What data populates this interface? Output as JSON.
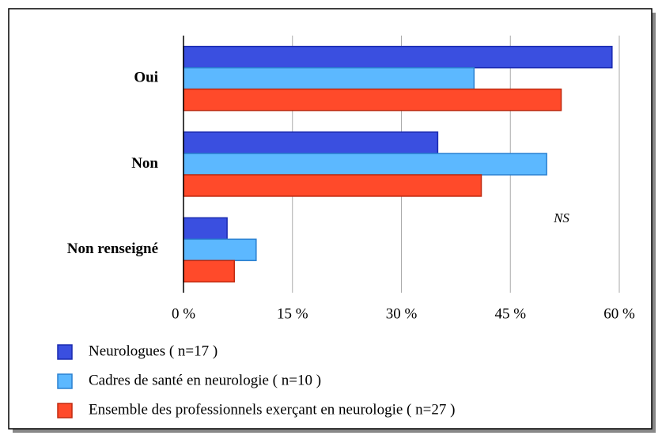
{
  "chart_data": {
    "type": "barh",
    "categories": [
      "Oui",
      "Non",
      "Non renseigné"
    ],
    "series": [
      {
        "name": "Neurologues ( n=17 )",
        "color": "#3a4fe0",
        "values": [
          59,
          35,
          6
        ]
      },
      {
        "name": "Cadres de santé en neurologie ( n=10 )",
        "color": "#5cb8ff",
        "values": [
          40,
          50,
          10
        ]
      },
      {
        "name": "Ensemble des professionnels exerçant en neurologie ( n=27 )",
        "color": "#ff4a2a",
        "values": [
          52,
          41,
          7
        ]
      }
    ],
    "xlim": [
      0,
      60
    ],
    "xticks": [
      {
        "value": 0,
        "label": "0 %"
      },
      {
        "value": 15,
        "label": "15 %"
      },
      {
        "value": 30,
        "label": "30 %"
      },
      {
        "value": 45,
        "label": "45 %"
      },
      {
        "value": 60,
        "label": "60 %"
      }
    ],
    "grid": true,
    "annotations": [
      "NS"
    ]
  }
}
